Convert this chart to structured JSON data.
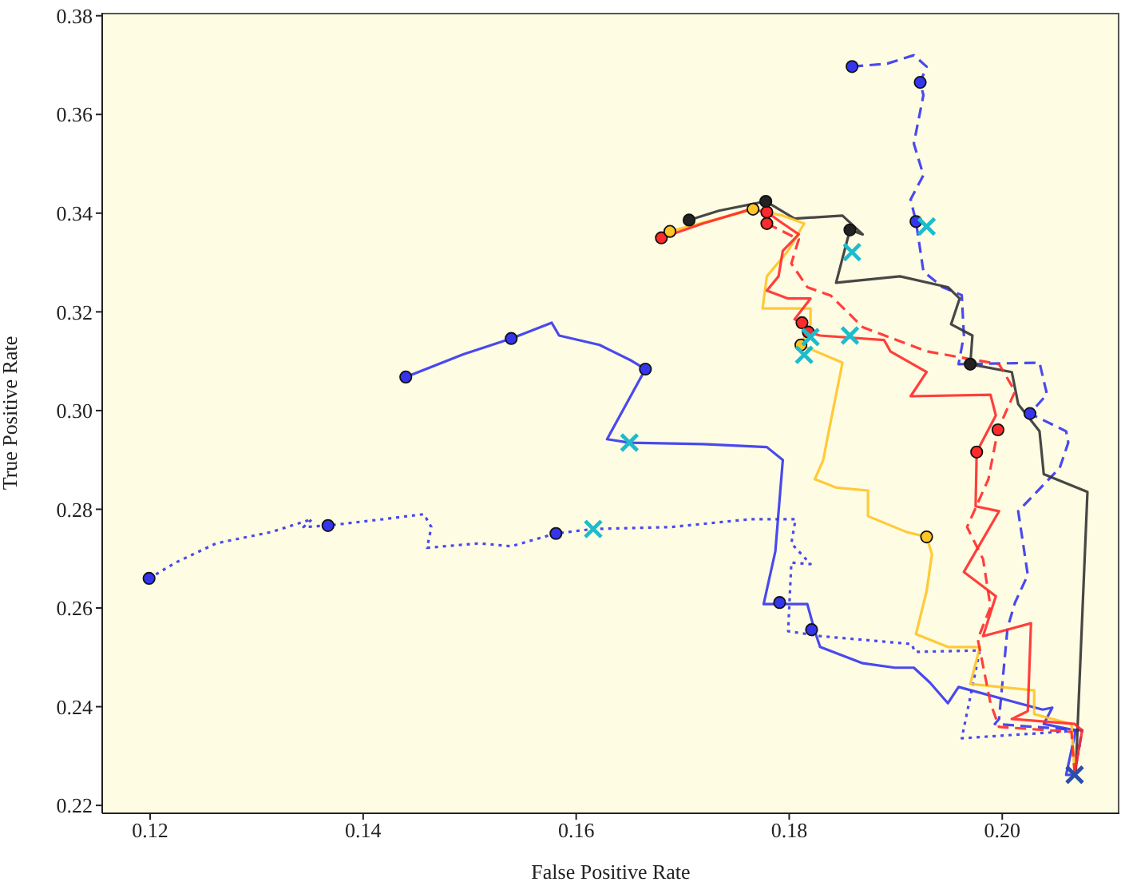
{
  "chart_data": {
    "type": "line",
    "xlabel": "False Positive Rate",
    "ylabel": "True Positive Rate",
    "xlim": [
      0.1155,
      0.211
    ],
    "ylim": [
      0.2184,
      0.3806
    ],
    "xticks": [
      0.12,
      0.14,
      0.16,
      0.18,
      {
        "value": 0.2,
        "label": "0.20"
      }
    ],
    "yticks": [
      0.22,
      0.24,
      0.26,
      0.28,
      {
        "value": 0.3,
        "label": "0.30"
      },
      0.32,
      0.34,
      0.36,
      0.38
    ],
    "grid": false,
    "series": [
      {
        "color": "#3535ee",
        "line_style": "solid",
        "marker": "none",
        "x": [
          0.144,
          0.1494,
          0.1539,
          0.1577,
          0.1584,
          0.1622,
          0.1652,
          0.1665,
          0.1629,
          0.165,
          0.1719,
          0.1779,
          0.1794,
          0.1787,
          0.1776,
          0.1817,
          0.1824,
          0.1829,
          0.1869,
          0.1899,
          0.1917,
          0.1932,
          0.1949,
          0.1959,
          0.2038,
          0.2047,
          0.2039,
          0.2069,
          0.206,
          0.2068
        ],
        "values": [
          0.3068,
          0.3114,
          0.3146,
          0.3178,
          0.3152,
          0.3133,
          0.3101,
          0.3084,
          0.2942,
          0.2935,
          0.2932,
          0.2926,
          0.29,
          0.2715,
          0.2608,
          0.2608,
          0.2553,
          0.2521,
          0.2488,
          0.2479,
          0.2479,
          0.2449,
          0.2407,
          0.244,
          0.2394,
          0.2398,
          0.2365,
          0.2352,
          0.2262,
          0.2262
        ]
      },
      {
        "color": "#3535ee",
        "line_style": "dashed",
        "marker": "none",
        "x": [
          0.1859,
          0.1892,
          0.1917,
          0.1929,
          0.1923,
          0.1926,
          0.1917,
          0.1926,
          0.1914,
          0.1919,
          0.1926,
          0.1944,
          0.1962,
          0.1964,
          0.1959,
          0.2035,
          0.2042,
          0.2026,
          0.206,
          0.2062,
          0.2054,
          0.2015,
          0.2024,
          0.2012,
          0.2005,
          0.1997,
          0.1993,
          0.2075,
          0.2068
        ],
        "values": [
          0.3697,
          0.3703,
          0.372,
          0.3697,
          0.3665,
          0.3639,
          0.3541,
          0.3477,
          0.3428,
          0.3383,
          0.3282,
          0.325,
          0.3234,
          0.3152,
          0.3094,
          0.3097,
          0.3033,
          0.2994,
          0.2958,
          0.2935,
          0.2884,
          0.2796,
          0.2667,
          0.2611,
          0.256,
          0.2375,
          0.2365,
          0.2352,
          0.2268
        ]
      },
      {
        "color": "#3535ee",
        "line_style": "dotted",
        "marker": "none",
        "x": [
          0.1199,
          0.1224,
          0.1262,
          0.1314,
          0.1352,
          0.1344,
          0.1367,
          0.1419,
          0.1457,
          0.1464,
          0.146,
          0.1509,
          0.1539,
          0.1581,
          0.1616,
          0.1689,
          0.1764,
          0.1806,
          0.1802,
          0.182,
          0.1802,
          0.1799,
          0.1829,
          0.1915,
          0.1918,
          0.1979,
          0.1962,
          0.2075,
          0.2068
        ],
        "values": [
          0.266,
          0.2692,
          0.2731,
          0.2754,
          0.278,
          0.2764,
          0.2767,
          0.278,
          0.279,
          0.2764,
          0.2722,
          0.2731,
          0.2725,
          0.2751,
          0.276,
          0.2764,
          0.278,
          0.278,
          0.2731,
          0.2689,
          0.2692,
          0.2553,
          0.2543,
          0.2527,
          0.2511,
          0.2514,
          0.2336,
          0.2352,
          0.2265
        ]
      },
      {
        "color": "#333333",
        "line_style": "solid",
        "marker": "none",
        "x": [
          0.1706,
          0.1734,
          0.1778,
          0.1805,
          0.185,
          0.1869,
          0.1857,
          0.1844,
          0.1904,
          0.1949,
          0.196,
          0.1952,
          0.1972,
          0.197,
          0.2009,
          0.2015,
          0.2035,
          0.2039,
          0.208,
          0.2069
        ],
        "values": [
          0.3386,
          0.3405,
          0.3424,
          0.3389,
          0.3395,
          0.3357,
          0.3366,
          0.3259,
          0.3272,
          0.325,
          0.3227,
          0.3175,
          0.3152,
          0.3094,
          0.3078,
          0.3013,
          0.2958,
          0.2871,
          0.2835,
          0.2268
        ]
      },
      {
        "color": "#ffc425",
        "line_style": "solid",
        "marker": "none",
        "x": [
          0.1688,
          0.1734,
          0.1766,
          0.1794,
          0.1814,
          0.1799,
          0.1779,
          0.1775,
          0.182,
          0.182,
          0.1811,
          0.185,
          0.1835,
          0.1832,
          0.1824,
          0.1844,
          0.1874,
          0.1874,
          0.191,
          0.1929,
          0.1934,
          0.1929,
          0.1919,
          0.1949,
          0.1979,
          0.197,
          0.203,
          0.203,
          0.2065,
          0.2068
        ],
        "values": [
          0.3363,
          0.3389,
          0.3408,
          0.3395,
          0.3379,
          0.3324,
          0.3272,
          0.3207,
          0.3207,
          0.3175,
          0.3133,
          0.3097,
          0.2935,
          0.29,
          0.2861,
          0.2844,
          0.2838,
          0.2786,
          0.2754,
          0.2744,
          0.2709,
          0.2634,
          0.2547,
          0.2521,
          0.2521,
          0.2446,
          0.2433,
          0.2385,
          0.2365,
          0.2265
        ]
      },
      {
        "color": "#ff2a2a",
        "line_style": "solid",
        "marker": "none",
        "x": [
          0.168,
          0.1719,
          0.1764,
          0.1779,
          0.1794,
          0.1809,
          0.1794,
          0.179,
          0.1779,
          0.1799,
          0.182,
          0.1805,
          0.1812,
          0.1818,
          0.1829,
          0.1889,
          0.1895,
          0.1929,
          0.1914,
          0.1989,
          0.1994,
          0.1976,
          0.1975,
          0.1997,
          0.1964,
          0.1994,
          0.1982,
          0.2027,
          0.2024,
          0.2009,
          0.2068,
          0.2075,
          0.2068
        ],
        "values": [
          0.335,
          0.3379,
          0.3408,
          0.3402,
          0.3379,
          0.3357,
          0.3324,
          0.3272,
          0.3243,
          0.3227,
          0.3227,
          0.3185,
          0.3178,
          0.3159,
          0.3152,
          0.3143,
          0.312,
          0.3078,
          0.3029,
          0.3032,
          0.299,
          0.2916,
          0.2806,
          0.2796,
          0.2673,
          0.2624,
          0.2543,
          0.2569,
          0.2391,
          0.2375,
          0.2365,
          0.2352,
          0.2265
        ]
      },
      {
        "color": "#ff2a2a",
        "line_style": "dashed",
        "marker": "none",
        "x": [
          0.1779,
          0.1809,
          0.1802,
          0.1817,
          0.1839,
          0.1869,
          0.1929,
          0.1997,
          0.2012,
          0.1996,
          0.1987,
          0.1967,
          0.1982,
          0.1989,
          0.1977,
          0.1989,
          0.1997,
          0.2065,
          0.2068
        ],
        "values": [
          0.3379,
          0.3347,
          0.3298,
          0.325,
          0.3233,
          0.3169,
          0.312,
          0.3094,
          0.3039,
          0.2961,
          0.2861,
          0.2764,
          0.2699,
          0.2602,
          0.2537,
          0.2407,
          0.2359,
          0.2349,
          0.2265
        ]
      },
      {
        "type": "scatter",
        "color": "#3535ee",
        "marker": "circle",
        "x": [
          0.144,
          0.1539,
          0.1665,
          0.1199,
          0.1367,
          0.1581,
          0.1859,
          0.1923,
          0.1919,
          0.2026,
          0.1791,
          0.1821
        ],
        "values": [
          0.3068,
          0.3146,
          0.3084,
          0.266,
          0.2767,
          0.2751,
          0.3697,
          0.3665,
          0.3383,
          0.2994,
          0.2611,
          0.2556
        ]
      },
      {
        "type": "scatter",
        "color": "#ff2a2a",
        "marker": "circle",
        "x": [
          0.168,
          0.1779,
          0.1779,
          0.1812,
          0.1818,
          0.1996,
          0.1976
        ],
        "values": [
          0.335,
          0.3402,
          0.3379,
          0.3178,
          0.3159,
          0.2961,
          0.2916
        ]
      },
      {
        "type": "scatter",
        "color": "#ffc425",
        "marker": "circle",
        "x": [
          0.1688,
          0.1766,
          0.1811,
          0.1929
        ],
        "values": [
          0.3363,
          0.3408,
          0.3133,
          0.2744
        ]
      },
      {
        "type": "scatter",
        "color": "#222222",
        "marker": "circle",
        "x": [
          0.1706,
          0.1778,
          0.1857,
          0.197
        ],
        "values": [
          0.3386,
          0.3424,
          0.3366,
          0.3094
        ]
      },
      {
        "type": "scatter",
        "color": "#1cbccc",
        "marker": "cross",
        "x": [
          0.165,
          0.1616,
          0.1859,
          0.1929,
          0.1857,
          0.1814,
          0.182
        ],
        "values": [
          0.2935,
          0.276,
          0.3321,
          0.3373,
          0.3152,
          0.3113,
          0.3149
        ]
      },
      {
        "type": "scatter",
        "color": "#2a4fa8",
        "marker": "cross",
        "x": [
          0.2068
        ],
        "values": [
          0.2262
        ]
      }
    ]
  }
}
